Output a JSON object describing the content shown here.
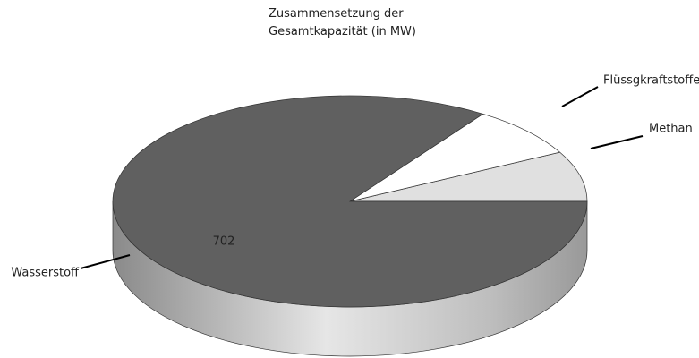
{
  "chart_data": {
    "type": "pie3d",
    "title": "Zusammensetzung der Gesamtkapazität (in MW)",
    "categories": [
      "Methan",
      "Flüssgkraftstoffe",
      "Wasserstoff"
    ],
    "values": [
      64,
      65,
      702
    ],
    "colors": [
      "#e0e0e0",
      "#ffffff",
      "#606060"
    ]
  }
}
